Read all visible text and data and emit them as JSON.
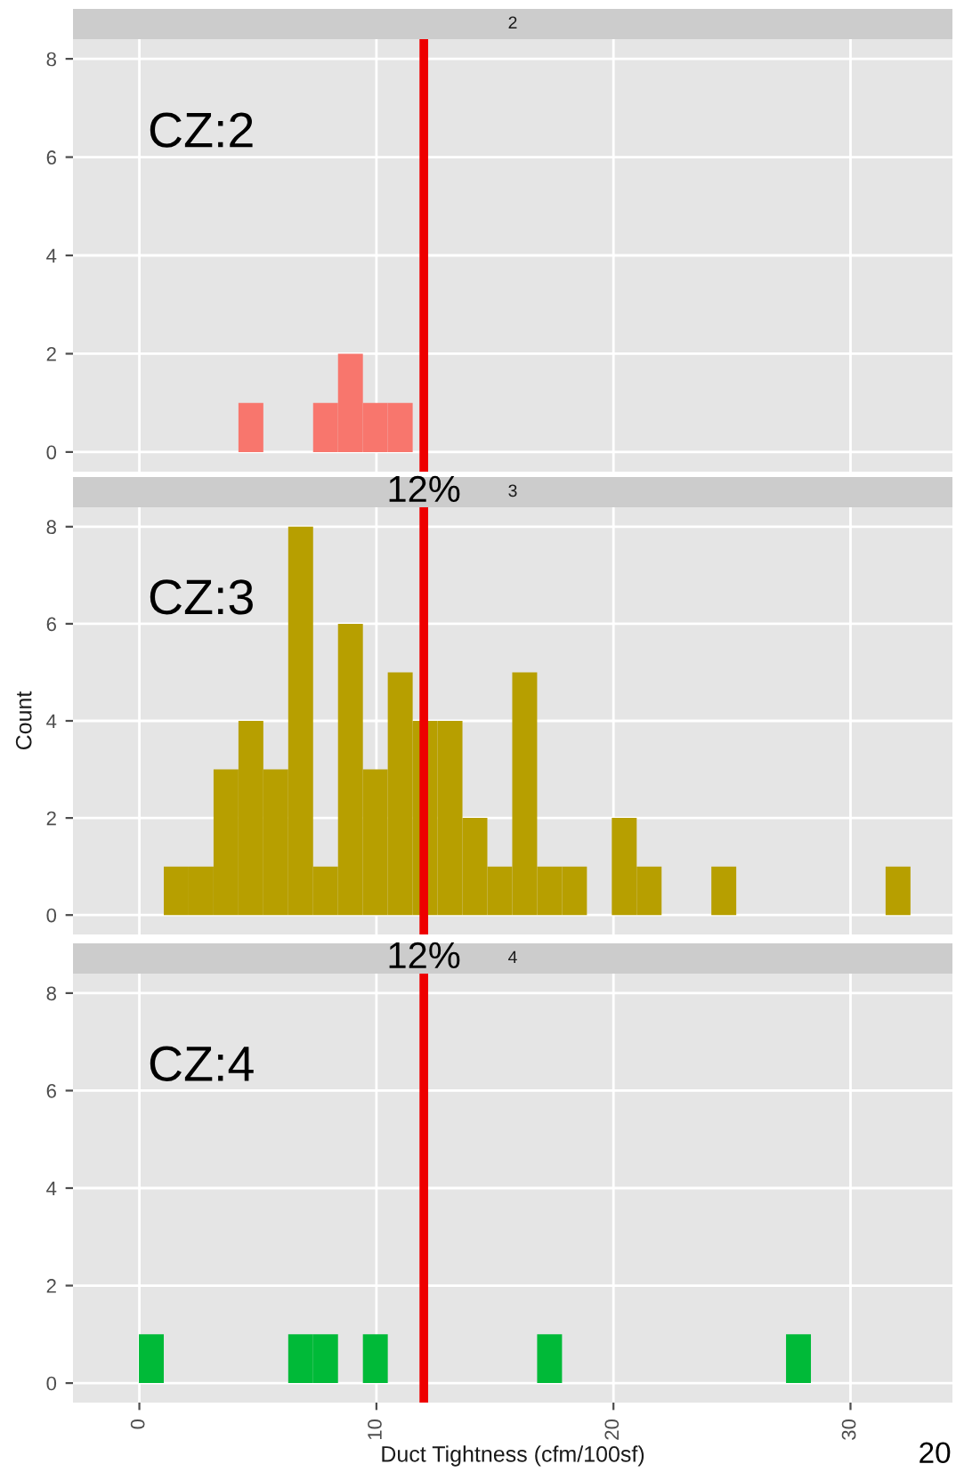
{
  "chart_data": [
    {
      "type": "histogram",
      "title": "2",
      "annotations": [
        "CZ:2"
      ],
      "bins": [
        -0.02,
        1.03,
        2.08,
        3.13,
        4.18,
        5.23,
        6.28,
        7.33,
        8.38,
        9.43,
        10.48,
        11.53,
        12.58,
        13.63,
        14.68,
        15.73,
        16.78,
        17.83,
        18.88,
        19.93,
        20.98,
        22.03,
        23.08,
        24.13,
        25.18,
        26.23,
        27.28,
        28.33,
        29.38,
        30.43,
        31.48,
        32.53
      ],
      "values": [
        0,
        0,
        0,
        0,
        1,
        0,
        0,
        1,
        2,
        1,
        1,
        0,
        0,
        0,
        0,
        0,
        0,
        0,
        0,
        0,
        0,
        0,
        0,
        0,
        0,
        0,
        0,
        0,
        0,
        0,
        0
      ],
      "color": "#f8766d",
      "xlim": [
        -2.8,
        34.3
      ],
      "xticks": [
        0,
        10,
        20,
        30
      ],
      "ylim": [
        -0.4,
        8.4
      ],
      "yticks": [
        0,
        2,
        4,
        6,
        8
      ],
      "grid": true,
      "tick_labels": "y",
      "ref_lines": [
        {
          "axis": "x",
          "value": 12,
          "color": "#ee0000"
        }
      ]
    },
    {
      "type": "histogram",
      "title": "3",
      "ylabel": "Count",
      "annotations": [
        "CZ:3"
      ],
      "bins": [
        -0.02,
        1.03,
        2.08,
        3.13,
        4.18,
        5.23,
        6.28,
        7.33,
        8.38,
        9.43,
        10.48,
        11.53,
        12.58,
        13.63,
        14.68,
        15.73,
        16.78,
        17.83,
        18.88,
        19.93,
        20.98,
        22.03,
        23.08,
        24.13,
        25.18,
        26.23,
        27.28,
        28.33,
        29.38,
        30.43,
        31.48,
        32.53
      ],
      "values": [
        0,
        1,
        1,
        3,
        4,
        3,
        8,
        1,
        6,
        3,
        5,
        4,
        4,
        2,
        1,
        5,
        1,
        1,
        0,
        2,
        1,
        0,
        0,
        1,
        0,
        0,
        0,
        0,
        0,
        0,
        1
      ],
      "color": "#b79f00",
      "xlim": [
        -2.8,
        34.3
      ],
      "xticks": [
        0,
        10,
        20,
        30
      ],
      "ylim": [
        -0.4,
        8.4
      ],
      "yticks": [
        0,
        2,
        4,
        6,
        8
      ],
      "grid": true,
      "tick_labels": "y",
      "ref_lines": [
        {
          "axis": "x",
          "value": 12,
          "label": "12%",
          "color": "#ee0000"
        }
      ]
    },
    {
      "type": "histogram",
      "title": "4",
      "xlabel": "Duct Tightness (cfm/100sf)",
      "annotations": [
        "CZ:4",
        "20"
      ],
      "bins": [
        -0.02,
        1.03,
        2.08,
        3.13,
        4.18,
        5.23,
        6.28,
        7.33,
        8.38,
        9.43,
        10.48,
        11.53,
        12.58,
        13.63,
        14.68,
        15.73,
        16.78,
        17.83,
        18.88,
        19.93,
        20.98,
        22.03,
        23.08,
        24.13,
        25.18,
        26.23,
        27.28,
        28.33,
        29.38,
        30.43,
        31.48,
        32.53
      ],
      "values": [
        1,
        0,
        0,
        0,
        0,
        0,
        1,
        1,
        0,
        1,
        0,
        0,
        0,
        0,
        0,
        0,
        1,
        0,
        0,
        0,
        0,
        0,
        0,
        0,
        0,
        0,
        1,
        0,
        0,
        0,
        0
      ],
      "color": "#00ba38",
      "xlim": [
        -2.8,
        34.3
      ],
      "xticks": [
        0,
        10,
        20,
        30
      ],
      "ylim": [
        -0.4,
        8.4
      ],
      "yticks": [
        0,
        2,
        4,
        6,
        8
      ],
      "grid": true,
      "ref_lines": [
        {
          "axis": "x",
          "value": 12,
          "label": "12%",
          "color": "#ee0000"
        }
      ]
    }
  ]
}
